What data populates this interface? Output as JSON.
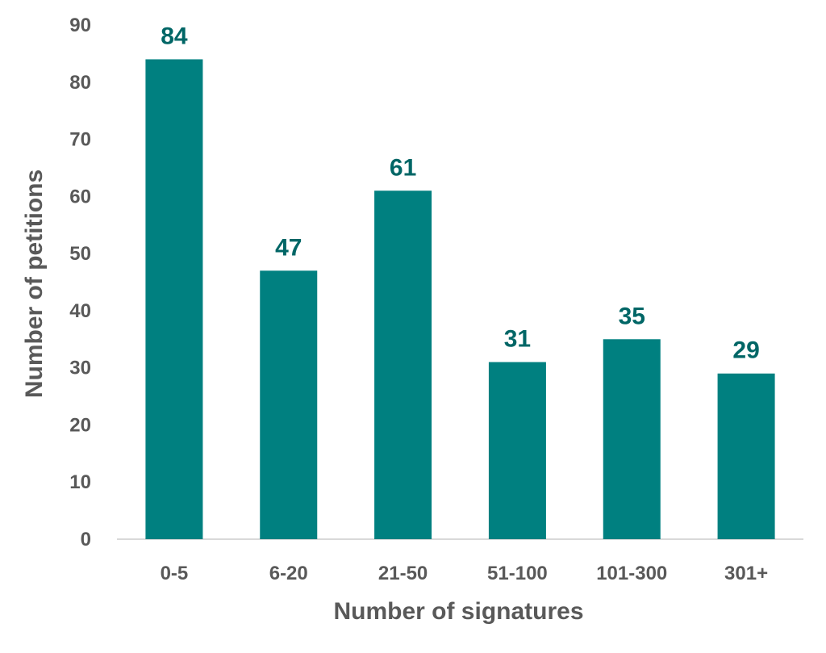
{
  "chart_data": {
    "type": "bar",
    "title": "",
    "xlabel": "Number of signatures",
    "ylabel": "Number of petitions",
    "categories": [
      "0-5",
      "6-20",
      "21-50",
      "51-100",
      "101-300",
      "301+"
    ],
    "values": [
      84,
      47,
      61,
      31,
      35,
      29
    ],
    "ylim": [
      0,
      90
    ],
    "yticks": [
      0,
      10,
      20,
      30,
      40,
      50,
      60,
      70,
      80,
      90
    ],
    "grid": false,
    "data_labels": true,
    "colors": {
      "bar": "#008080",
      "data_label": "#006666",
      "axis_text": "#595959",
      "axis_line": "#d9d9d9"
    }
  }
}
